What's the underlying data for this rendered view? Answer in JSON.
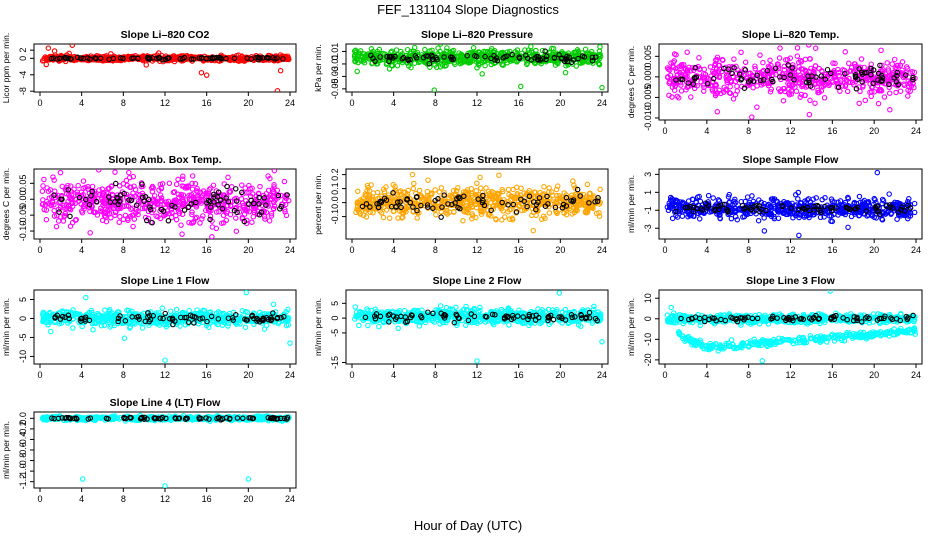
{
  "figure": {
    "title": "FEF_131104  Slope Diagnostics",
    "xlabel": "Hour of Day (UTC)"
  },
  "chart_data": [
    {
      "id": "co2",
      "type": "scatter",
      "title": "Slope Li–820 CO2",
      "ylabel": "Licor ppm per min.",
      "xlim": [
        0,
        24
      ],
      "ylim": [
        -8.2,
        3.5
      ],
      "xticks": [
        0,
        4,
        8,
        12,
        16,
        20,
        24
      ],
      "yticks": [
        2,
        0,
        -4,
        -8
      ],
      "ytick_labels": [
        "2",
        "0",
        "-4",
        "-8"
      ],
      "grid": false,
      "color": "#ff0000",
      "main_center": 0,
      "main_spread": 0.6,
      "black_spread": 0.25,
      "outliers": [
        [
          0.6,
          -1.5
        ],
        [
          0.8,
          2.5
        ],
        [
          1.4,
          1.8
        ],
        [
          2.8,
          1.2
        ],
        [
          3.1,
          3.2
        ],
        [
          6.8,
          1.1
        ],
        [
          10.2,
          -1.6
        ],
        [
          15.5,
          -3.5
        ],
        [
          16.0,
          -4.1
        ],
        [
          22.8,
          -7.9
        ],
        [
          23.1,
          -3.0
        ],
        [
          11.4,
          1.3
        ]
      ]
    },
    {
      "id": "pressure",
      "type": "scatter",
      "title": "Slope Li–820 Pressure",
      "ylabel": "kPa per min.",
      "xlim": [
        0,
        24
      ],
      "ylim": [
        -0.055,
        0.022
      ],
      "xticks": [
        0,
        4,
        8,
        12,
        16,
        20,
        24
      ],
      "yticks": [
        0.01,
        -0.01,
        -0.03,
        -0.05
      ],
      "ytick_labels": [
        "0.01",
        "-0.01",
        "-0.03",
        "-0.05"
      ],
      "grid": false,
      "color": "#00cc00",
      "main_center": 0.0,
      "main_spread": 0.012,
      "black_spread": 0.006,
      "outliers": [
        [
          7.9,
          -0.052
        ],
        [
          12.5,
          -0.026
        ],
        [
          16.2,
          -0.046
        ],
        [
          24.0,
          -0.048
        ],
        [
          3.6,
          -0.018
        ],
        [
          0.5,
          -0.022
        ],
        [
          20.5,
          -0.024
        ]
      ]
    },
    {
      "id": "temp",
      "type": "scatter",
      "title": "Slope Li–820 Temp.",
      "ylabel": "degrees C per min.",
      "xlim": [
        0,
        24
      ],
      "ylim": [
        -0.0105,
        0.008
      ],
      "xticks": [
        0,
        4,
        8,
        12,
        16,
        20,
        24
      ],
      "yticks": [
        0.005,
        0.0,
        -0.005,
        -0.01
      ],
      "ytick_labels": [
        "0.005",
        "0.000",
        "-0.005",
        "-0.010"
      ],
      "grid": false,
      "color": "#ff00ff",
      "main_center": 0.0,
      "main_spread": 0.0045,
      "black_spread": 0.0025,
      "outliers": [
        [
          8.3,
          -0.0098
        ],
        [
          11.0,
          0.007
        ],
        [
          13.8,
          -0.0092
        ],
        [
          5.0,
          -0.0085
        ],
        [
          21.5,
          -0.008
        ]
      ]
    },
    {
      "id": "ambbox",
      "type": "scatter",
      "title": "Slope Amb. Box Temp.",
      "ylabel": "degrees C per min.",
      "xlim": [
        0,
        24
      ],
      "ylim": [
        -0.125,
        0.095
      ],
      "xticks": [
        0,
        4,
        8,
        12,
        16,
        20,
        24
      ],
      "yticks": [
        0.05,
        0.0,
        -0.05,
        -0.1
      ],
      "ytick_labels": [
        "0.05",
        "0.00",
        "-0.05",
        "-0.10"
      ],
      "grid": false,
      "color": "#ff00ff",
      "main_center": -0.01,
      "main_spread": 0.07,
      "black_spread": 0.05,
      "outliers": [
        [
          7.2,
          0.085
        ],
        [
          16.5,
          -0.118
        ],
        [
          22.5,
          0.09
        ]
      ]
    },
    {
      "id": "rh",
      "type": "scatter",
      "title": "Slope Gas Stream RH",
      "ylabel": "percent per min.",
      "xlim": [
        0,
        24
      ],
      "ylim": [
        -0.26,
        0.24
      ],
      "xticks": [
        0,
        4,
        8,
        12,
        16,
        20,
        24
      ],
      "yticks": [
        0.2,
        0.1,
        0.0,
        -0.1
      ],
      "ytick_labels": [
        "0.2",
        "0.1",
        "0.0",
        "-0.1"
      ],
      "grid": false,
      "color": "#ffa500",
      "main_center": 0.0,
      "main_spread": 0.1,
      "black_spread": 0.07,
      "outliers": [
        [
          5.8,
          0.2
        ],
        [
          7.3,
          0.16
        ],
        [
          17.4,
          -0.2
        ],
        [
          12.3,
          0.18
        ],
        [
          22.6,
          0.13
        ]
      ]
    },
    {
      "id": "sampleflow",
      "type": "scatter",
      "title": "Slope Sample Flow",
      "ylabel": "ml/min per min.",
      "xlim": [
        0,
        24
      ],
      "ylim": [
        -4.2,
        3.6
      ],
      "xticks": [
        0,
        4,
        8,
        12,
        16,
        20,
        24
      ],
      "yticks": [
        3,
        1,
        -1,
        -3
      ],
      "ytick_labels": [
        "3",
        "1",
        "-1",
        "-3"
      ],
      "grid": false,
      "color": "#0000ff",
      "main_center": -0.8,
      "main_spread": 1.1,
      "black_spread": 0.5,
      "outliers": [
        [
          12.8,
          -3.8
        ],
        [
          9.5,
          -3.3
        ],
        [
          20.3,
          3.2
        ],
        [
          17.5,
          -2.9
        ]
      ]
    },
    {
      "id": "line1",
      "type": "scatter",
      "title": "Slope Line 1 Flow",
      "ylabel": "ml/min per min.",
      "xlim": [
        0,
        24
      ],
      "ylim": [
        -12,
        7.5
      ],
      "xticks": [
        0,
        4,
        8,
        12,
        16,
        20,
        24
      ],
      "yticks": [
        5,
        0,
        -5,
        -10
      ],
      "ytick_labels": [
        "5",
        "0",
        "-5",
        "-10"
      ],
      "grid": false,
      "color": "#00ffff",
      "main_center": 0.0,
      "main_spread": 2.0,
      "black_spread": 1.2,
      "outliers": [
        [
          12.0,
          -11.0
        ],
        [
          19.8,
          6.8
        ],
        [
          24.0,
          -6.5
        ],
        [
          4.4,
          5.5
        ],
        [
          8.1,
          -5.2
        ]
      ]
    },
    {
      "id": "line2",
      "type": "scatter",
      "title": "Slope Line 2 Flow",
      "ylabel": "ml/min per min.",
      "xlim": [
        0,
        24
      ],
      "ylim": [
        -15.5,
        9.5
      ],
      "xticks": [
        0,
        4,
        8,
        12,
        16,
        20,
        24
      ],
      "yticks": [
        5,
        0,
        -5,
        -15
      ],
      "ytick_labels": [
        "5",
        "0",
        "-5",
        "-15"
      ],
      "grid": false,
      "color": "#00ffff",
      "main_center": 0.5,
      "main_spread": 2.5,
      "black_spread": 1.5,
      "outliers": [
        [
          12.0,
          -14.5
        ],
        [
          19.9,
          8.5
        ],
        [
          24.0,
          -8.0
        ]
      ]
    },
    {
      "id": "line3",
      "type": "scatter",
      "title": "Slope Line 3 Flow",
      "ylabel": "ml/min per min.",
      "xlim": [
        0,
        24
      ],
      "ylim": [
        -22,
        14
      ],
      "xticks": [
        0,
        4,
        8,
        12,
        16,
        20,
        24
      ],
      "yticks": [
        10,
        0,
        -10,
        -20
      ],
      "ytick_labels": [
        "10",
        "0",
        "-10",
        "-20"
      ],
      "grid": false,
      "color": "#00ffff",
      "main_center": 0.0,
      "main_spread": 2.0,
      "black_spread": 1.2,
      "secondary": {
        "start": [
          1.0,
          -7.5
        ],
        "dip": [
          4.0,
          -14.0
        ],
        "end": [
          24.0,
          -6.0
        ],
        "spread": 1.8
      },
      "outliers": [
        [
          15.8,
          13.5
        ],
        [
          9.3,
          -20.5
        ],
        [
          0.6,
          5.5
        ]
      ]
    },
    {
      "id": "line4",
      "type": "scatter",
      "title": "Slope Line 4 (LT) Flow",
      "ylabel": "ml/min per min.",
      "xlim": [
        0,
        24
      ],
      "ylim": [
        -1.32,
        0.12
      ],
      "xticks": [
        0,
        4,
        8,
        12,
        16,
        20,
        24
      ],
      "yticks": [
        0.0,
        -0.2,
        -0.4,
        -0.6,
        -0.8,
        -1.0,
        -1.2
      ],
      "ytick_labels": [
        "0.0",
        "-0.2",
        "-0.4",
        "-0.6",
        "-0.8",
        "-1.0",
        "-1.2"
      ],
      "grid": false,
      "color": "#00ffff",
      "main_center": 0.0,
      "main_spread": 0.035,
      "black_spread": 0.02,
      "outliers": [
        [
          4.1,
          -1.15
        ],
        [
          12.0,
          -1.28
        ],
        [
          20.0,
          -1.15
        ],
        [
          8.2,
          -0.05
        ]
      ]
    }
  ]
}
